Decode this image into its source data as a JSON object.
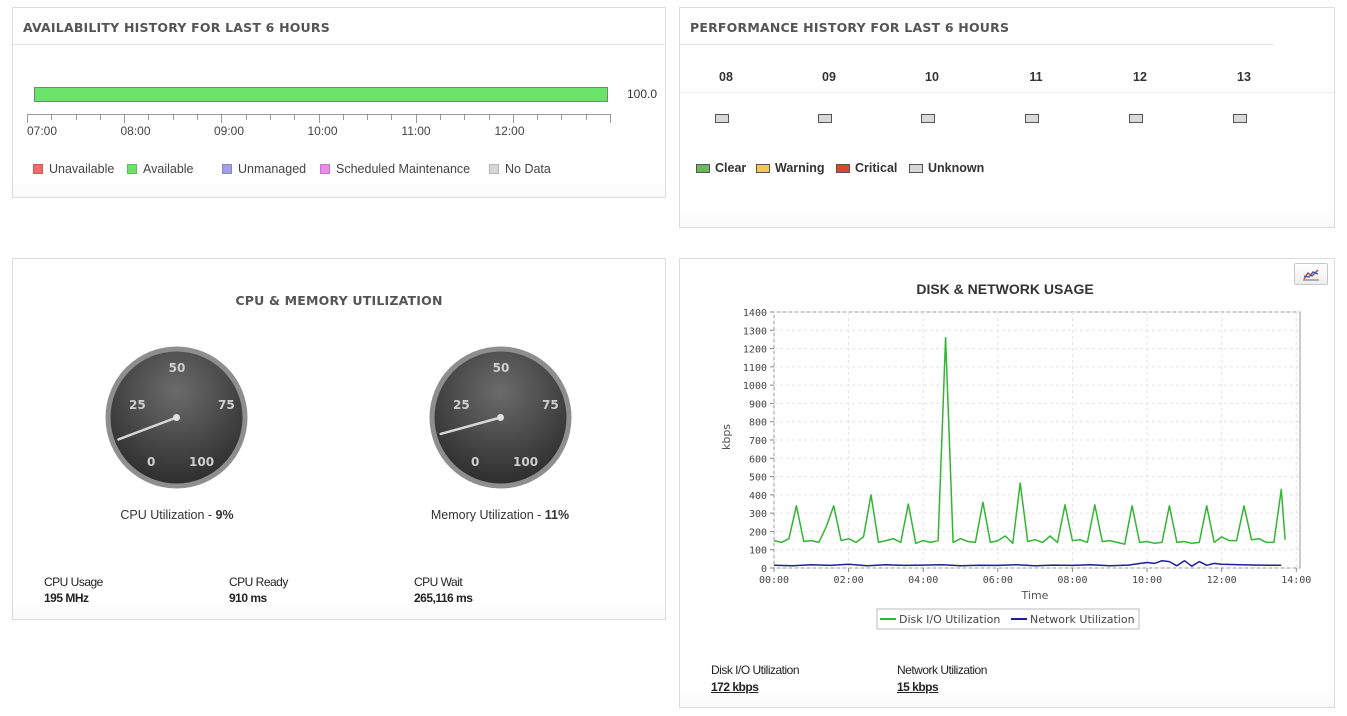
{
  "availability": {
    "title": "AVAILABILITY HISTORY FOR LAST 6 HOURS",
    "percent_available": 100.0,
    "value_label": "100.0",
    "bar_color": "#6be36b",
    "time_labels": [
      "07:00",
      "08:00",
      "09:00",
      "10:00",
      "11:00",
      "12:00"
    ],
    "legend": [
      {
        "label": "Unavailable",
        "color": "#ef6a6a"
      },
      {
        "label": "Available",
        "color": "#6be36b"
      },
      {
        "label": "Unmanaged",
        "color": "#9f9fe6"
      },
      {
        "label": "Scheduled Maintenance",
        "color": "#e88ce8"
      },
      {
        "label": "No Data",
        "color": "#d6d6d6"
      }
    ]
  },
  "performance": {
    "title": "PERFORMANCE HISTORY FOR LAST 6 HOURS",
    "hours": [
      "08",
      "09",
      "10",
      "11",
      "12",
      "13"
    ],
    "hour_status": [
      "Unknown",
      "Unknown",
      "Unknown",
      "Unknown",
      "Unknown",
      "Unknown"
    ],
    "legend": [
      {
        "label": "Clear",
        "color": "#6db85a"
      },
      {
        "label": "Warning",
        "color": "#f2c94c"
      },
      {
        "label": "Critical",
        "color": "#e0452b"
      },
      {
        "label": "Unknown",
        "color": "#d8d8d8"
      }
    ]
  },
  "cpu_memory": {
    "title": "CPU & MEMORY UTILIZATION",
    "gauge_ticks": [
      "0",
      "25",
      "50",
      "75",
      "100"
    ],
    "cpu": {
      "label": "CPU Utilization - ",
      "value_label": "9%",
      "value": 9
    },
    "memory": {
      "label": "Memory Utilization - ",
      "value_label": "11%",
      "value": 11
    },
    "stats": [
      {
        "label": "CPU Usage",
        "value": "195 MHz"
      },
      {
        "label": "CPU Ready",
        "value": "910 ms"
      },
      {
        "label": "CPU Wait",
        "value": "265,116 ms"
      }
    ]
  },
  "disk_network": {
    "stats": [
      {
        "label": "Disk I/O Utilization",
        "value": "172 kbps"
      },
      {
        "label": "Network Utilization",
        "value": "15 kbps"
      }
    ]
  },
  "chart_data": {
    "type": "line",
    "title": "DISK & NETWORK USAGE",
    "xlabel": "Time",
    "ylabel": "kbps",
    "xlim": [
      0,
      14.1
    ],
    "ylim": [
      0,
      1400
    ],
    "x_ticks": [
      "00:00",
      "02:00",
      "04:00",
      "06:00",
      "08:00",
      "10:00",
      "12:00",
      "14:00"
    ],
    "y_ticks": [
      0,
      100,
      200,
      300,
      400,
      500,
      600,
      700,
      800,
      900,
      1000,
      1100,
      1200,
      1300,
      1400
    ],
    "grid": true,
    "legend_position": "bottom",
    "series": [
      {
        "name": "Disk I/O Utilization",
        "color": "#33b533",
        "x": [
          0,
          0.2,
          0.4,
          0.6,
          0.8,
          1.0,
          1.2,
          1.4,
          1.6,
          1.8,
          2.0,
          2.2,
          2.4,
          2.6,
          2.8,
          3.0,
          3.2,
          3.4,
          3.6,
          3.8,
          4.0,
          4.2,
          4.4,
          4.6,
          4.8,
          5.0,
          5.2,
          5.4,
          5.6,
          5.8,
          6.0,
          6.2,
          6.4,
          6.6,
          6.8,
          7.0,
          7.2,
          7.4,
          7.6,
          7.8,
          8.0,
          8.2,
          8.4,
          8.6,
          8.8,
          9.0,
          9.2,
          9.4,
          9.6,
          9.8,
          10.0,
          10.2,
          10.4,
          10.6,
          10.8,
          11.0,
          11.2,
          11.4,
          11.6,
          11.8,
          12.0,
          12.2,
          12.4,
          12.6,
          12.8,
          13.0,
          13.2,
          13.4,
          13.6
        ],
        "y": [
          150,
          140,
          160,
          340,
          145,
          150,
          140,
          225,
          340,
          150,
          160,
          140,
          170,
          400,
          140,
          150,
          160,
          140,
          350,
          135,
          150,
          140,
          150,
          1260,
          140,
          160,
          145,
          140,
          360,
          140,
          150,
          175,
          135,
          465,
          145,
          155,
          140,
          175,
          140,
          345,
          150,
          155,
          140,
          345,
          145,
          150,
          140,
          130,
          340,
          140,
          145,
          135,
          140,
          340,
          140,
          145,
          135,
          140,
          340,
          140,
          170,
          150,
          150,
          340,
          155,
          160,
          140,
          140,
          430
        ],
        "y_end": 155
      },
      {
        "name": "Network Utilization",
        "color": "#1f1f9a",
        "x": [
          0,
          0.5,
          1.0,
          1.5,
          2.0,
          2.5,
          3.0,
          3.5,
          4.0,
          4.5,
          5.0,
          5.5,
          6.0,
          6.5,
          7.0,
          7.5,
          8.0,
          8.5,
          9.0,
          9.5,
          10.0,
          10.2,
          10.4,
          10.6,
          10.8,
          11.0,
          11.2,
          11.4,
          11.6,
          11.8,
          12.0,
          12.5,
          13.0,
          13.6
        ],
        "y": [
          15,
          12,
          18,
          14,
          20,
          12,
          18,
          14,
          16,
          18,
          12,
          15,
          14,
          18,
          12,
          16,
          14,
          18,
          12,
          16,
          30,
          25,
          40,
          35,
          12,
          40,
          10,
          35,
          15,
          25,
          20,
          18,
          16,
          15
        ]
      }
    ]
  }
}
